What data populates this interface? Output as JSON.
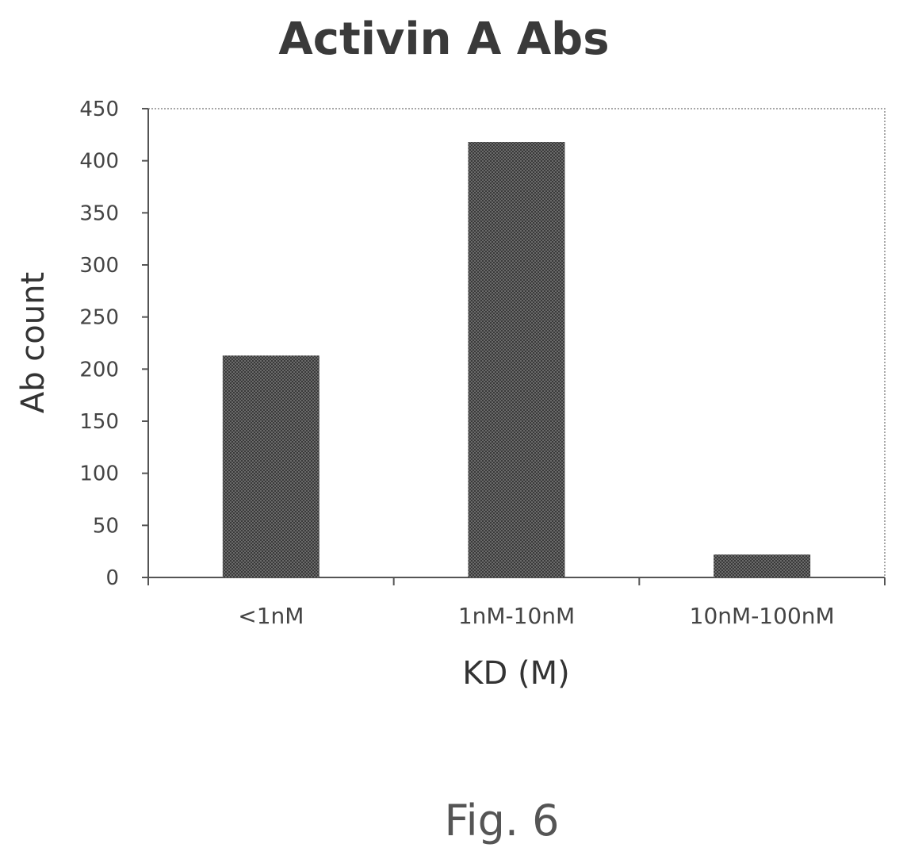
{
  "chart_data": {
    "type": "bar",
    "title": "Activin A Abs",
    "xlabel": "KD (M)",
    "ylabel": "Ab count",
    "categories": [
      "<1nM",
      "1nM-10nM",
      "10nM-100nM"
    ],
    "values": [
      213,
      418,
      22
    ],
    "ylim": [
      0,
      450
    ],
    "yticks": [
      0,
      50,
      100,
      150,
      200,
      250,
      300,
      350,
      400,
      450
    ],
    "grid": false,
    "legend": "none",
    "bar_color": "#555555"
  },
  "figure_label": "Fig. 6"
}
